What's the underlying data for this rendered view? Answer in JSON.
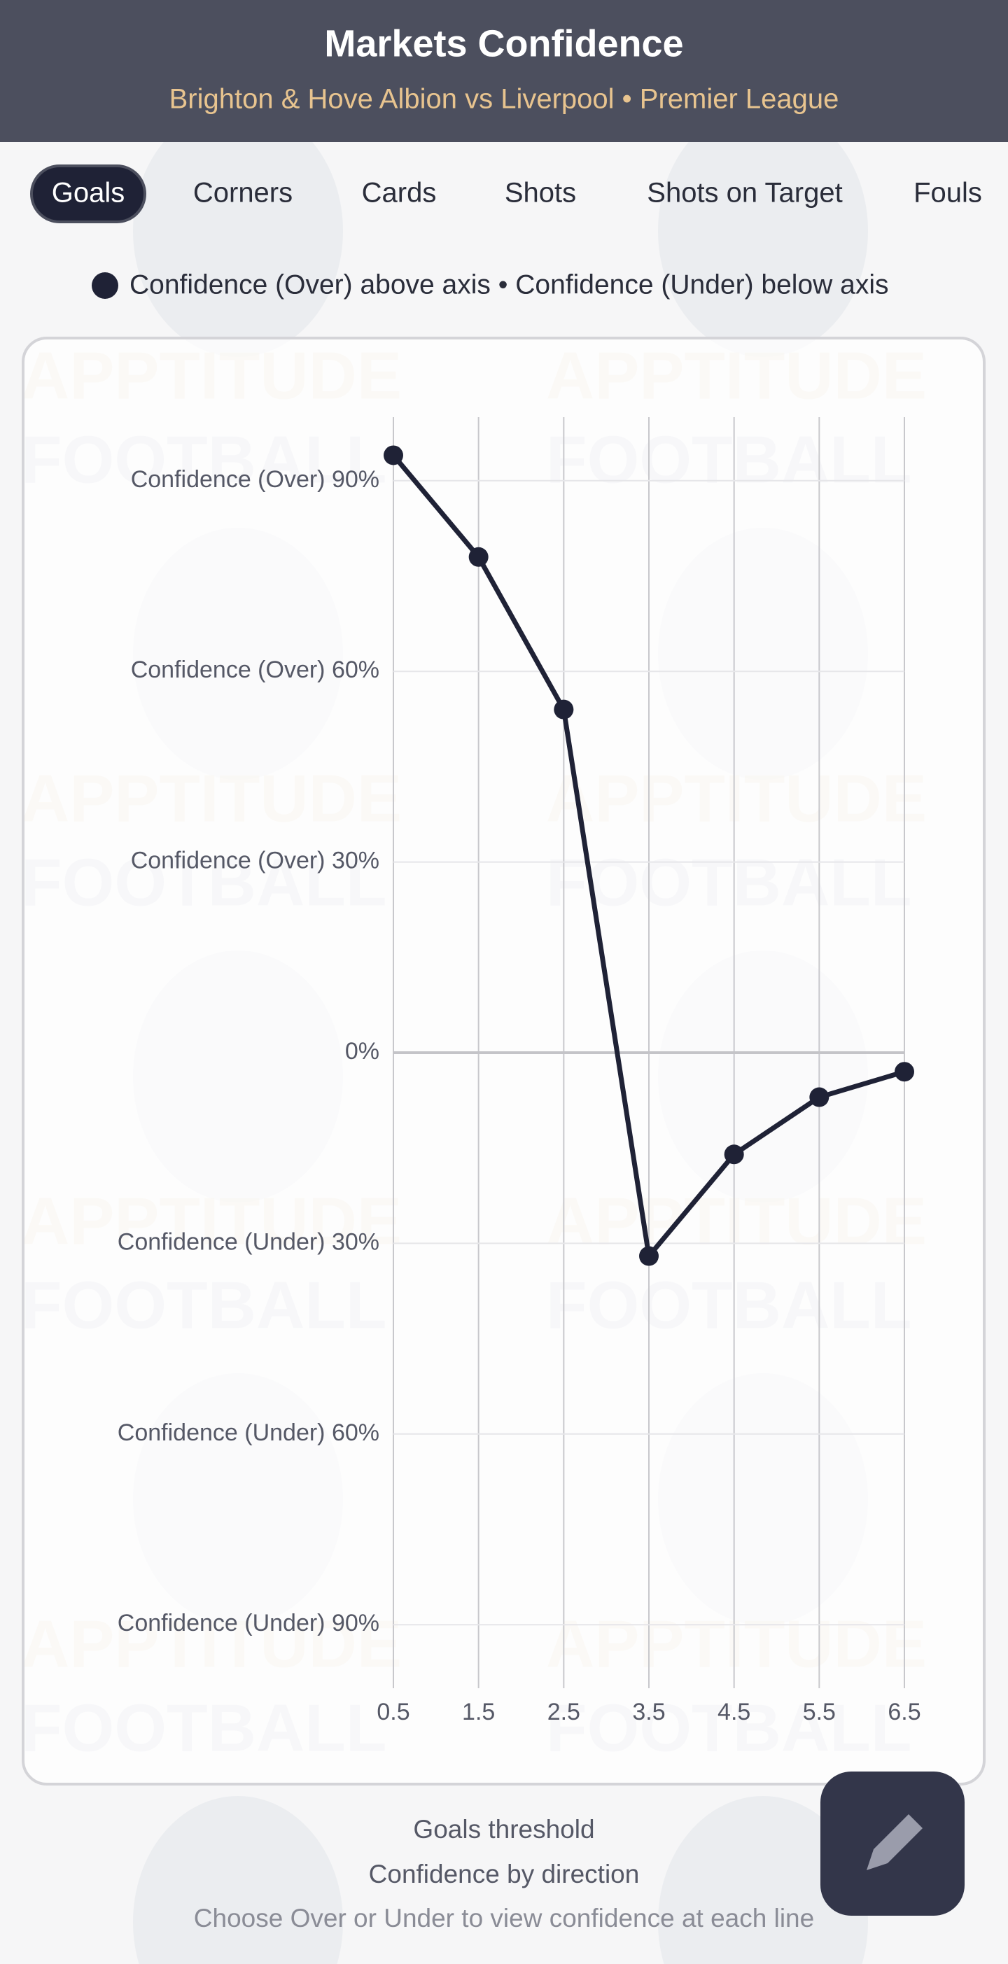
{
  "header": {
    "title": "Markets Confidence",
    "subtitle": "Brighton & Hove Albion vs Liverpool • Premier League"
  },
  "tabs": [
    "Goals",
    "Corners",
    "Cards",
    "Shots",
    "Shots on Target",
    "Fouls"
  ],
  "legend": "Confidence (Over) above axis • Confidence (Under) below axis",
  "watermark": [
    "APPTITUDE",
    "FOOTBALL"
  ],
  "chart_data": {
    "type": "line",
    "x": [
      0.5,
      1.5,
      2.5,
      3.5,
      4.5,
      5.5,
      6.5
    ],
    "values": [
      94,
      78,
      54,
      -32,
      -16,
      -7,
      -3
    ],
    "color": "#1f2236",
    "xlim": [
      0.5,
      6.5
    ],
    "xticks": [
      0.5,
      1.5,
      2.5,
      3.5,
      4.5,
      5.5,
      6.5
    ],
    "ylim": [
      -100,
      100
    ],
    "yticks": [
      {
        "value": 90,
        "label": "Confidence (Over) 90%"
      },
      {
        "value": 60,
        "label": "Confidence (Over) 60%"
      },
      {
        "value": 30,
        "label": "Confidence (Over) 30%"
      },
      {
        "value": 0,
        "label": "0%"
      },
      {
        "value": -30,
        "label": "Confidence (Under) 30%"
      },
      {
        "value": -60,
        "label": "Confidence (Under) 60%"
      },
      {
        "value": -90,
        "label": "Confidence (Under) 90%"
      }
    ],
    "grid": true
  },
  "footer": {
    "title": "Goals threshold",
    "subtitle": "Confidence by direction",
    "hint": "Choose Over or Under to view confidence at each line"
  }
}
